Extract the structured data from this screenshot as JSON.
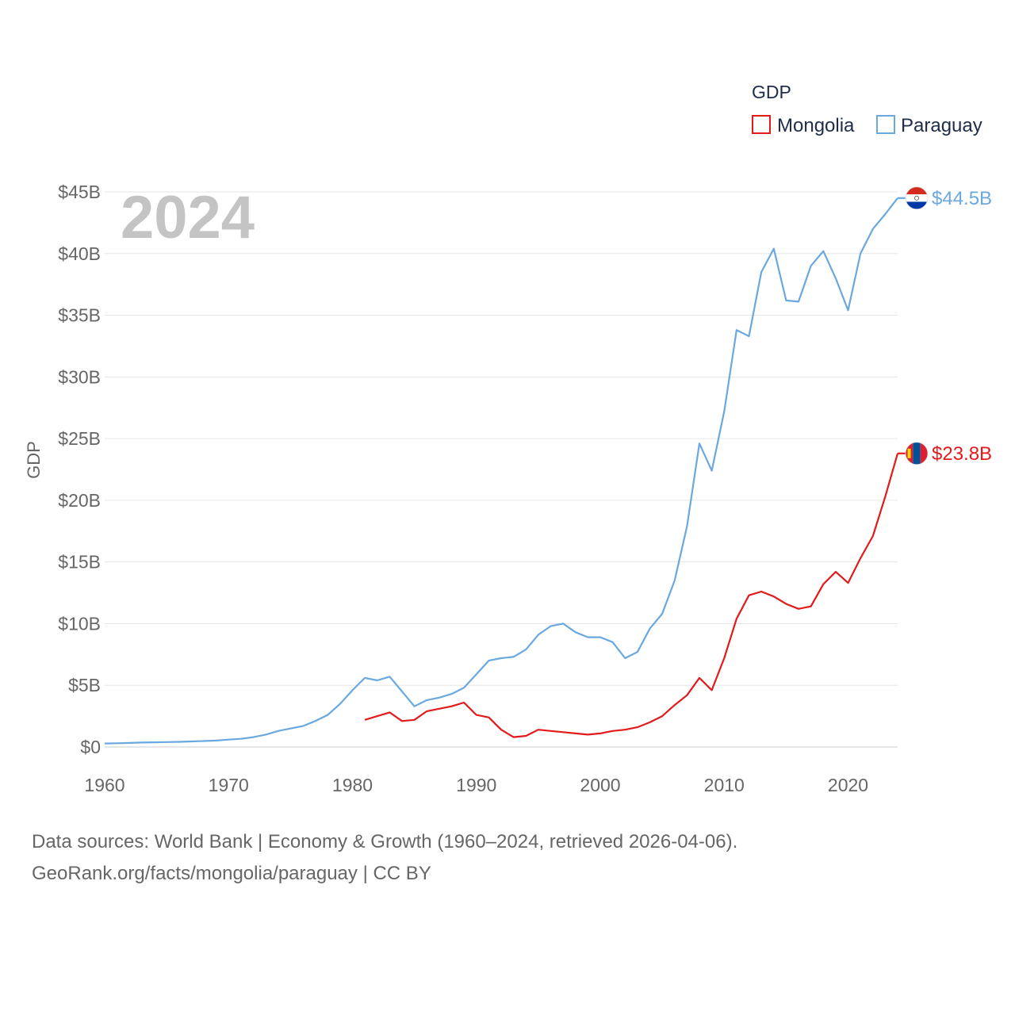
{
  "chart_data": {
    "type": "line",
    "year_label": "2024",
    "legend_title": "GDP",
    "ylabel": "GDP",
    "xlim": [
      1960,
      2024
    ],
    "ylim": [
      0,
      45
    ],
    "y_unit": "billion USD",
    "x_ticks": [
      1960,
      1970,
      1980,
      1990,
      2000,
      2010,
      2020
    ],
    "x_tick_labels": [
      "1960",
      "1970",
      "1980",
      "1990",
      "2000",
      "2010",
      "2020"
    ],
    "y_ticks": [
      0,
      5,
      10,
      15,
      20,
      25,
      30,
      35,
      40,
      45
    ],
    "y_tick_labels": [
      "$0",
      "$5B",
      "$10B",
      "$15B",
      "$20B",
      "$25B",
      "$30B",
      "$35B",
      "$40B",
      "$45B"
    ],
    "grid": true,
    "legend_position": "top-right",
    "series": [
      {
        "name": "Mongolia",
        "color": "#e31a1c",
        "end_label": "$23.8B",
        "x": [
          1981,
          1982,
          1983,
          1984,
          1985,
          1986,
          1987,
          1988,
          1989,
          1990,
          1991,
          1992,
          1993,
          1994,
          1995,
          1996,
          1997,
          1998,
          1999,
          2000,
          2001,
          2002,
          2003,
          2004,
          2005,
          2006,
          2007,
          2008,
          2009,
          2010,
          2011,
          2012,
          2013,
          2014,
          2015,
          2016,
          2017,
          2018,
          2019,
          2020,
          2021,
          2022,
          2023,
          2024
        ],
        "values": [
          2.2,
          2.5,
          2.8,
          2.1,
          2.2,
          2.9,
          3.1,
          3.3,
          3.6,
          2.6,
          2.4,
          1.4,
          0.8,
          0.9,
          1.4,
          1.3,
          1.2,
          1.1,
          1.0,
          1.1,
          1.3,
          1.4,
          1.6,
          2.0,
          2.5,
          3.4,
          4.2,
          5.6,
          4.6,
          7.2,
          10.4,
          12.3,
          12.6,
          12.2,
          11.6,
          11.2,
          11.4,
          13.2,
          14.2,
          13.3,
          15.3,
          17.1,
          20.3,
          23.8
        ]
      },
      {
        "name": "Paraguay",
        "color": "#6aa8e0",
        "end_label": "$44.5B",
        "x": [
          1960,
          1961,
          1962,
          1963,
          1964,
          1965,
          1966,
          1967,
          1968,
          1969,
          1970,
          1971,
          1972,
          1973,
          1974,
          1975,
          1976,
          1977,
          1978,
          1979,
          1980,
          1981,
          1982,
          1983,
          1984,
          1985,
          1986,
          1987,
          1988,
          1989,
          1990,
          1991,
          1992,
          1993,
          1994,
          1995,
          1996,
          1997,
          1998,
          1999,
          2000,
          2001,
          2002,
          2003,
          2004,
          2005,
          2006,
          2007,
          2008,
          2009,
          2010,
          2011,
          2012,
          2013,
          2014,
          2015,
          2016,
          2017,
          2018,
          2019,
          2020,
          2021,
          2022,
          2023,
          2024
        ],
        "values": [
          0.28,
          0.3,
          0.33,
          0.36,
          0.38,
          0.4,
          0.42,
          0.45,
          0.48,
          0.52,
          0.6,
          0.66,
          0.8,
          1.0,
          1.3,
          1.5,
          1.7,
          2.1,
          2.6,
          3.5,
          4.6,
          5.6,
          5.4,
          5.7,
          4.5,
          3.3,
          3.8,
          4.0,
          4.3,
          4.8,
          5.9,
          7.0,
          7.2,
          7.3,
          7.9,
          9.1,
          9.8,
          10.0,
          9.3,
          8.9,
          8.9,
          8.5,
          7.2,
          7.7,
          9.6,
          10.8,
          13.5,
          17.9,
          24.6,
          22.4,
          27.2,
          33.8,
          33.3,
          38.5,
          40.4,
          36.2,
          36.1,
          39.0,
          40.2,
          38.0,
          35.4,
          40.0,
          42.0,
          43.2,
          44.5
        ]
      }
    ]
  },
  "footer": {
    "line1": "Data sources: World Bank | Economy & Growth (1960–2024, retrieved 2026-04-06).",
    "line2": "GeoRank.org/facts/mongolia/paraguay | CC BY"
  }
}
